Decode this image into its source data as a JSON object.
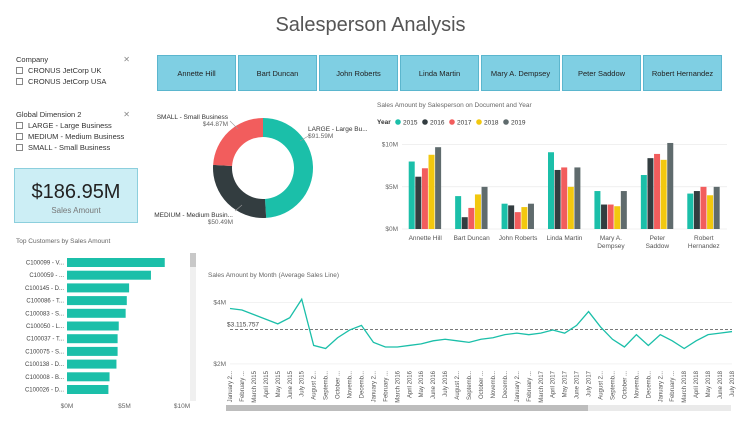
{
  "page": {
    "title": "Salesperson Analysis"
  },
  "company_slicer": {
    "title": "Company",
    "items": [
      "CRONUS JetCorp UK",
      "CRONUS JetCorp USA"
    ]
  },
  "dimension_slicer": {
    "title": "Global Dimension 2",
    "items": [
      "LARGE - Large Business",
      "MEDIUM - Medium Business",
      "SMALL - Small Business"
    ]
  },
  "card": {
    "value": "$186.95M",
    "label": "Sales Amount"
  },
  "salespeople": [
    "Annette Hill",
    "Bart Duncan",
    "John Roberts",
    "Linda Martin",
    "Mary A. Dempsey",
    "Peter Saddow",
    "Robert Hernandez"
  ],
  "donut": {
    "slices": [
      {
        "name": "LARGE - Large Bu...",
        "value_label": "$91.59M",
        "value": 91.59,
        "color": "#1bbfa9"
      },
      {
        "name": "MEDIUM - Medium Busin...",
        "value_label": "$50.49M",
        "value": 50.49,
        "color": "#333d40"
      },
      {
        "name": "SMALL - Small Business",
        "value_label": "$44.87M",
        "value": 44.87,
        "color": "#f25d5d"
      }
    ]
  },
  "chart_data": [
    {
      "type": "bar",
      "title": "Sales Amount by Salesperson on Document and Year",
      "legend_title": "Year",
      "legend_position": "top-left",
      "categories": [
        "Annette Hill",
        "Bart Duncan",
        "John Roberts",
        "Linda Martin",
        "Mary A. Dempsey",
        "Peter Saddow",
        "Robert Hernandez"
      ],
      "series": [
        {
          "name": "2015",
          "color": "#1bbfa9",
          "values": [
            8.0,
            3.9,
            3.0,
            9.1,
            4.5,
            6.4,
            4.2
          ]
        },
        {
          "name": "2016",
          "color": "#333d40",
          "values": [
            6.2,
            1.4,
            2.8,
            7.0,
            2.9,
            8.4,
            4.5
          ]
        },
        {
          "name": "2017",
          "color": "#f25d5d",
          "values": [
            7.2,
            2.5,
            2.0,
            7.3,
            2.9,
            8.9,
            5.0
          ]
        },
        {
          "name": "2018",
          "color": "#f2c80f",
          "values": [
            8.8,
            4.1,
            2.6,
            5.0,
            2.7,
            8.2,
            4.0
          ]
        },
        {
          "name": "2019",
          "color": "#5f6b6d",
          "values": [
            9.7,
            5.0,
            3.0,
            7.3,
            4.5,
            10.2,
            5.0
          ]
        }
      ],
      "y_ticks": [
        "$0M",
        "$5M",
        "$10M"
      ],
      "ylim": [
        0,
        11.5
      ]
    },
    {
      "type": "bar",
      "title": "Top Customers by Sales Amount",
      "orientation": "horizontal",
      "categories": [
        "C100099 - V...",
        "C100059 - ...",
        "C100145 - D...",
        "C100086 - T...",
        "C100083 - S...",
        "C100050 - L...",
        "C100037 - T...",
        "C100075 - S...",
        "C100138 - D...",
        "C100008 - B...",
        "C100026 - D..."
      ],
      "values": [
        8.5,
        7.3,
        5.4,
        5.2,
        5.1,
        4.5,
        4.4,
        4.4,
        4.3,
        3.7,
        3.6
      ],
      "color": "#1bbfa9",
      "x_ticks": [
        "$0M",
        "$5M",
        "$10M"
      ],
      "xlim": [
        0,
        10
      ]
    },
    {
      "type": "line",
      "title": "Sales Amount by Month (Average Sales Line)",
      "x": [
        "January 2015",
        "February 2015",
        "March 2015",
        "April 2015",
        "May 2015",
        "June 2015",
        "July 2015",
        "August 2015",
        "September 2015",
        "October 2015",
        "November 2015",
        "December 2015",
        "January 2016",
        "February 2016",
        "March 2016",
        "April 2016",
        "May 2016",
        "June 2016",
        "July 2016",
        "August 2016",
        "September 2016",
        "October 2016",
        "November 2016",
        "December 2016",
        "January 2017",
        "February 2017",
        "March 2017",
        "April 2017",
        "May 2017",
        "June 2017",
        "July 2017",
        "August 2017",
        "September 2017",
        "October 2017",
        "November 2017",
        "December 2017",
        "January 2018",
        "February 2018",
        "March 2018",
        "April 2018",
        "May 2018",
        "June 2018",
        "July 2018"
      ],
      "x_tick_labels": [
        "January 2...",
        "February ...",
        "March 2015",
        "April 2015",
        "May 2015",
        "June 2015",
        "July 2015",
        "August 2...",
        "Septemb...",
        "October ...",
        "Novemb...",
        "Decemb...",
        "January 2...",
        "February ...",
        "March 2016",
        "April 2016",
        "May 2016",
        "June 2016",
        "July 2016",
        "August 2...",
        "Septemb...",
        "October ...",
        "Novemb...",
        "Decemb...",
        "January 2...",
        "February ...",
        "March 2017",
        "April 2017",
        "May 2017",
        "June 2017",
        "July 2017",
        "August 2...",
        "Septemb...",
        "October ...",
        "Novemb...",
        "Decemb...",
        "January 2...",
        "February ...",
        "March 2018",
        "April 2018",
        "May 2018",
        "June 2018",
        "July 2018"
      ],
      "y": [
        3.8,
        3.75,
        3.6,
        3.45,
        3.3,
        3.5,
        4.1,
        2.6,
        2.5,
        2.85,
        3.1,
        3.25,
        2.7,
        2.55,
        2.55,
        2.6,
        2.65,
        2.75,
        2.8,
        2.75,
        2.7,
        2.8,
        2.85,
        2.95,
        3.0,
        2.95,
        3.0,
        3.1,
        3.0,
        3.25,
        3.7,
        3.2,
        2.8,
        2.55,
        2.95,
        2.6,
        2.95,
        2.75,
        2.5,
        2.75,
        2.95,
        3.0,
        3.05
      ],
      "average": 3.115757,
      "average_label": "$3.115.757",
      "color": "#1bbfa9",
      "y_ticks": [
        "$2M",
        "$4M"
      ],
      "ylim": [
        1.9,
        4.4
      ]
    }
  ]
}
